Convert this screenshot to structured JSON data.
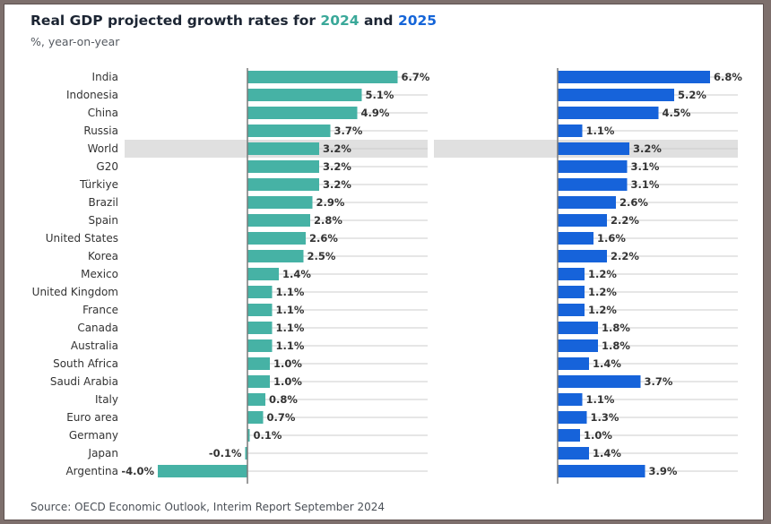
{
  "title": {
    "prefix": "Real GDP projected growth rates for ",
    "year_a": "2024",
    "joiner": " and ",
    "year_b": "2025"
  },
  "subtitle": "%, year-on-year",
  "source": "Source: OECD Economic Outlook, Interim Report September 2024",
  "colors": {
    "series_2024": "#46b2a5",
    "series_2025": "#1663da",
    "highlight": "#e0e0e0",
    "gridline": "#cccccc",
    "axis": "#7a7a7a",
    "text": "#333333"
  },
  "chart_data": {
    "type": "bar",
    "orientation": "horizontal",
    "layout": "two panels side by side",
    "unit": "%",
    "highlighted_category": "World",
    "categories": [
      "India",
      "Indonesia",
      "China",
      "Russia",
      "World",
      "G20",
      "Türkiye",
      "Brazil",
      "Spain",
      "United States",
      "Korea",
      "Mexico",
      "United Kingdom",
      "France",
      "Canada",
      "Australia",
      "South Africa",
      "Saudi Arabia",
      "Italy",
      "Euro area",
      "Germany",
      "Japan",
      "Argentina"
    ],
    "series": [
      {
        "name": "2024",
        "values": [
          6.7,
          5.1,
          4.9,
          3.7,
          3.2,
          3.2,
          3.2,
          2.9,
          2.8,
          2.6,
          2.5,
          1.4,
          1.1,
          1.1,
          1.1,
          1.1,
          1.0,
          1.0,
          0.8,
          0.7,
          0.1,
          -0.1,
          -4.0
        ]
      },
      {
        "name": "2025",
        "values": [
          6.8,
          5.2,
          4.5,
          1.1,
          3.2,
          3.1,
          3.1,
          2.6,
          2.2,
          1.6,
          2.2,
          1.2,
          1.2,
          1.2,
          1.8,
          1.8,
          1.4,
          3.7,
          1.1,
          1.3,
          1.0,
          1.4,
          3.9
        ]
      }
    ],
    "data_labels": [
      [
        "6.7%",
        "5.1%",
        "4.9%",
        "3.7%",
        "3.2%",
        "3.2%",
        "3.2%",
        "2.9%",
        "2.8%",
        "2.6%",
        "2.5%",
        "1.4%",
        "1.1%",
        "1.1%",
        "1.1%",
        "1.1%",
        "1.0%",
        "1.0%",
        "0.8%",
        "0.7%",
        "0.1%",
        "-0.1%",
        "-4.0%"
      ],
      [
        "6.8%",
        "5.2%",
        "4.5%",
        "1.1%",
        "3.2%",
        "3.1%",
        "3.1%",
        "2.6%",
        "2.2%",
        "1.6%",
        "2.2%",
        "1.2%",
        "1.2%",
        "1.2%",
        "1.8%",
        "1.8%",
        "1.4%",
        "3.7%",
        "1.1%",
        "1.3%",
        "1.0%",
        "1.4%",
        "3.9%"
      ]
    ],
    "grid": true,
    "legend": "none (years colored in title)"
  }
}
